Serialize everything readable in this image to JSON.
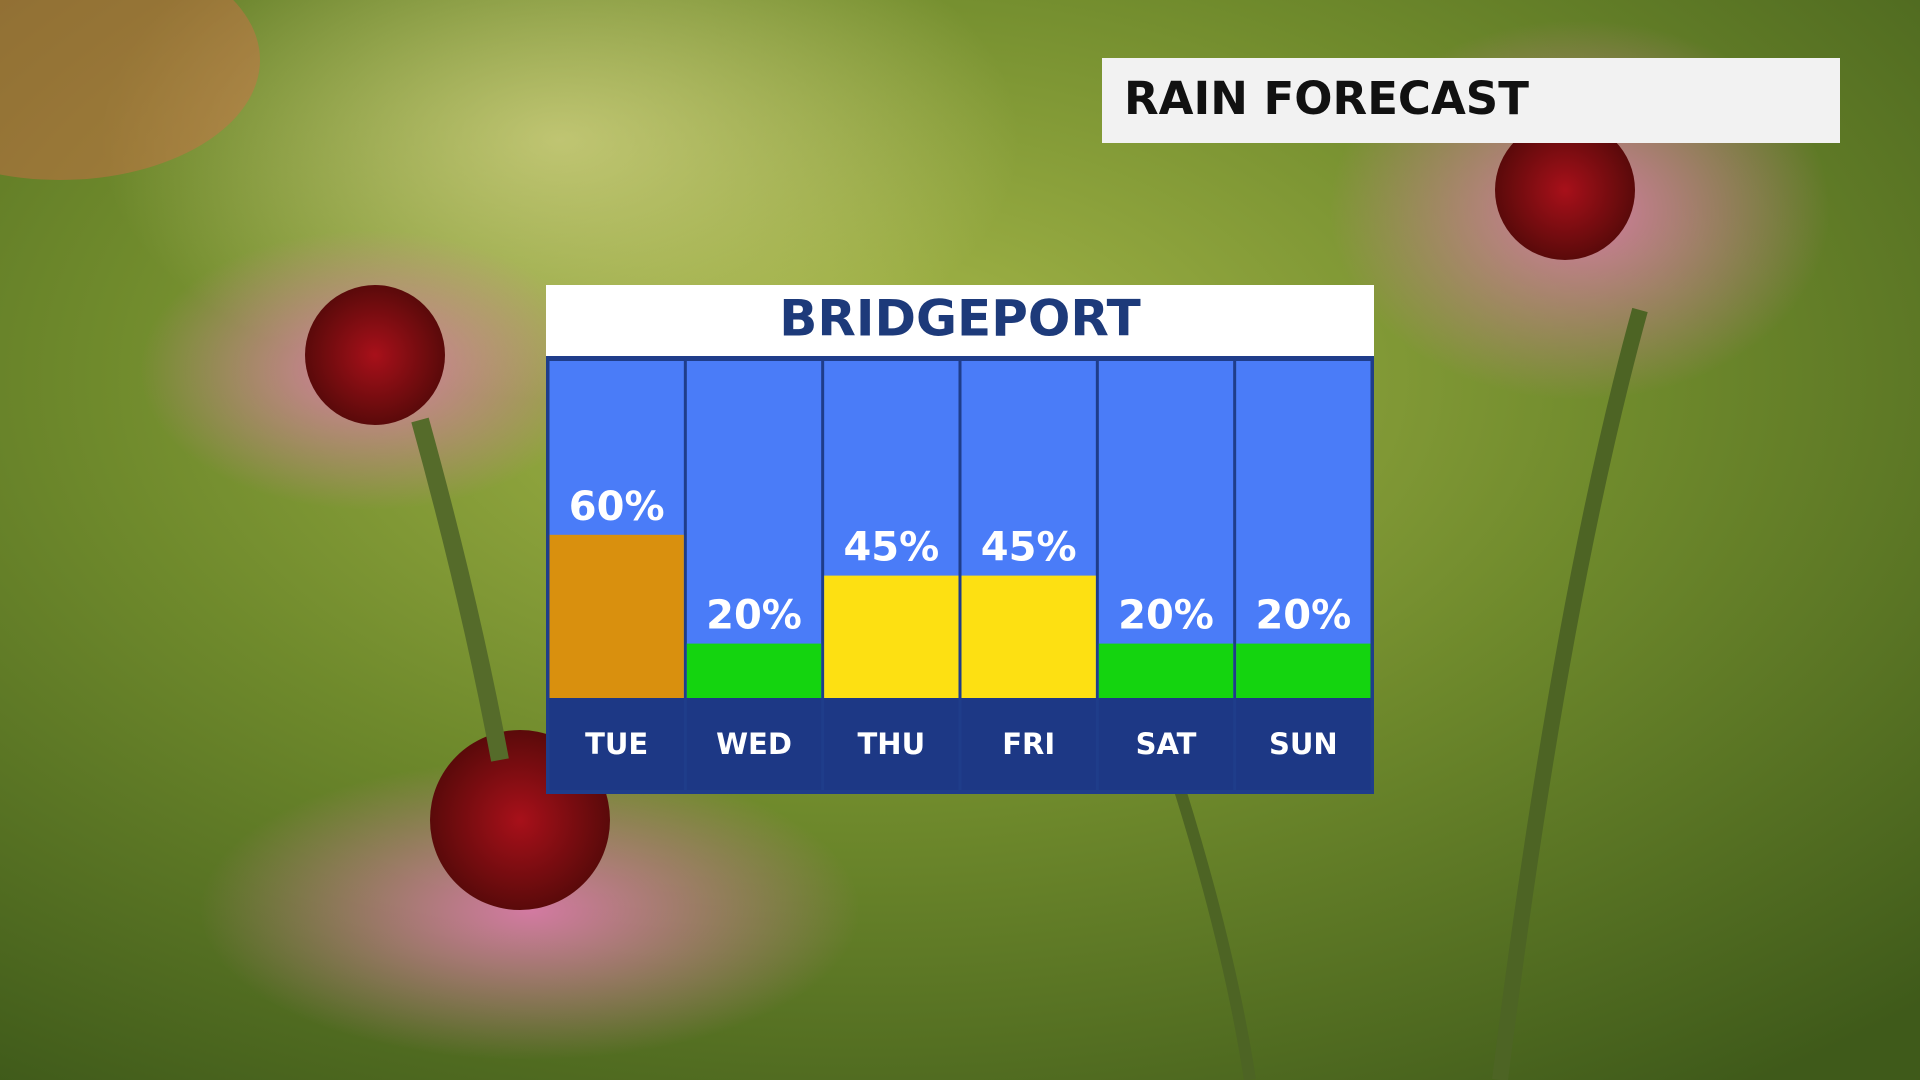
{
  "title": "RAIN FORECAST",
  "chart_data": {
    "type": "bar",
    "title": "BRIDGEPORT",
    "categories": [
      "TUE",
      "WED",
      "THU",
      "FRI",
      "SAT",
      "SUN"
    ],
    "values": [
      60,
      20,
      45,
      45,
      20,
      20
    ],
    "value_labels": [
      "60%",
      "20%",
      "45%",
      "45%",
      "20%",
      "20%"
    ],
    "colors": [
      "#d9900e",
      "#14d40f",
      "#fde012",
      "#fde012",
      "#14d40f",
      "#14d40f"
    ]
  }
}
